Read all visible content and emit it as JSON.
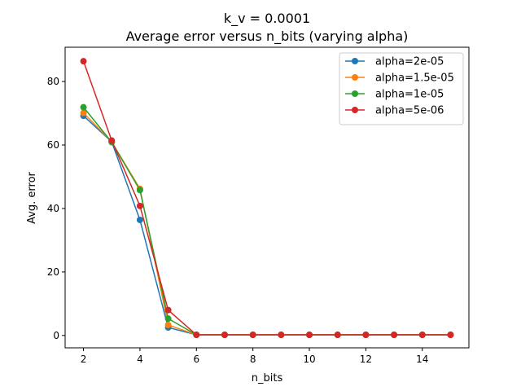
{
  "chart_data": {
    "type": "line",
    "title": "k_v = 0.0001",
    "subtitle": "Average error versus n_bits (varying alpha)",
    "xlabel": "n_bits",
    "ylabel": "Avg. error",
    "xlim": [
      1.35,
      15.65
    ],
    "ylim": [
      -3.9,
      90.8
    ],
    "xticks": [
      2,
      4,
      6,
      8,
      10,
      12,
      14
    ],
    "yticks": [
      0,
      20,
      40,
      60,
      80
    ],
    "grid": false,
    "legend_position": "top-right",
    "x": [
      2,
      3,
      4,
      5,
      6,
      7,
      8,
      9,
      10,
      11,
      12,
      13,
      14,
      15
    ],
    "series": [
      {
        "name": "alpha=2e-05",
        "color": "#1f77b4",
        "values": [
          69.2,
          61.0,
          36.4,
          2.5,
          0.2,
          0.2,
          0.2,
          0.2,
          0.2,
          0.2,
          0.2,
          0.2,
          0.2,
          0.2
        ]
      },
      {
        "name": "alpha=1.5e-05",
        "color": "#ff7f0e",
        "values": [
          70.1,
          61.0,
          46.2,
          3.3,
          0.2,
          0.2,
          0.2,
          0.2,
          0.2,
          0.2,
          0.2,
          0.2,
          0.2,
          0.2
        ]
      },
      {
        "name": "alpha=1e-05",
        "color": "#2ca02c",
        "values": [
          71.9,
          60.9,
          45.8,
          5.3,
          0.2,
          0.2,
          0.2,
          0.2,
          0.2,
          0.2,
          0.2,
          0.2,
          0.2,
          0.2
        ]
      },
      {
        "name": "alpha=5e-06",
        "color": "#d62728",
        "values": [
          86.4,
          61.4,
          40.8,
          8.0,
          0.2,
          0.2,
          0.2,
          0.2,
          0.2,
          0.2,
          0.2,
          0.2,
          0.2,
          0.2
        ]
      }
    ]
  }
}
